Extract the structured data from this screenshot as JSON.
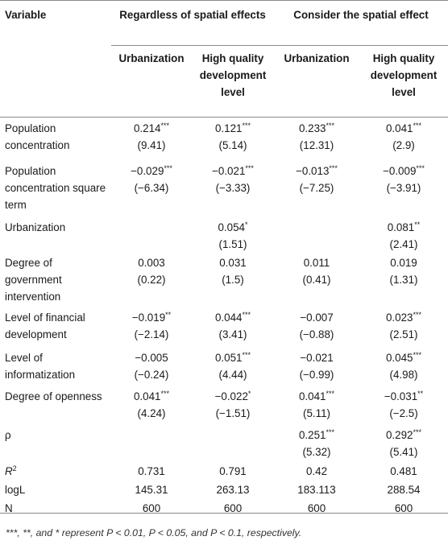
{
  "table": {
    "header": {
      "variable": "Variable",
      "group1": "Regardless of spatial effects",
      "group2": "Consider the spatial effect"
    },
    "subheaders": [
      "Urbanization",
      "High quality development level",
      "Urbanization",
      "High quality development level"
    ],
    "rows": [
      {
        "label": "Population concentration",
        "coef": [
          "0.214***",
          "0.121***",
          "0.233***",
          "0.041***"
        ],
        "se": [
          "(9.41)",
          "(5.14)",
          "(12.31)",
          "(2.9)"
        ]
      },
      {
        "label": "Population concentration square term",
        "coef": [
          "−0.029***",
          "−0.021***",
          "−0.013***",
          "−0.009***"
        ],
        "se": [
          "(−6.34)",
          "(−3.33)",
          "(−7.25)",
          "(−3.91)"
        ]
      },
      {
        "label": "Urbanization",
        "coef": [
          "",
          "0.054*",
          "",
          "0.081**"
        ],
        "se": [
          "",
          "(1.51)",
          "",
          "(2.41)"
        ]
      },
      {
        "label": "Degree of government intervention",
        "coef": [
          "0.003",
          "0.031",
          "0.011",
          "0.019"
        ],
        "se": [
          "(0.22)",
          "(1.5)",
          "(0.41)",
          "(1.31)"
        ]
      },
      {
        "label": "Level of financial development",
        "coef": [
          "−0.019**",
          "0.044***",
          "−0.007",
          "0.023***"
        ],
        "se": [
          "(−2.14)",
          "(3.41)",
          "(−0.88)",
          "(2.51)"
        ]
      },
      {
        "label": "Level of informatization",
        "coef": [
          "−0.005",
          "0.051***",
          "−0.021",
          "0.045***"
        ],
        "se": [
          "(−0.24)",
          "(4.44)",
          "(−0.99)",
          "(4.98)"
        ]
      },
      {
        "label": "Degree of openness",
        "coef": [
          "0.041***",
          "−0.022*",
          "0.041***",
          "−0.031**"
        ],
        "se": [
          "(4.24)",
          "(−1.51)",
          "(5.11)",
          "(−2.5)"
        ]
      },
      {
        "label": "ρ",
        "coef": [
          "",
          "",
          "0.251***",
          "0.292***"
        ],
        "se": [
          "",
          "",
          "(5.32)",
          "(5.41)"
        ]
      },
      {
        "label": "R2",
        "coef": [
          "0.731",
          "0.791",
          "0.42",
          "0.481"
        ],
        "se": [
          "",
          "",
          "",
          ""
        ]
      },
      {
        "label": "logL",
        "coef": [
          "145.31",
          "263.13",
          "183.113",
          "288.54"
        ],
        "se": [
          "",
          "",
          "",
          ""
        ]
      },
      {
        "label": "N",
        "coef": [
          "600",
          "600",
          "600",
          "600"
        ],
        "se": [
          "",
          "",
          "",
          ""
        ]
      }
    ],
    "footnote": "***, **, and * represent P < 0.01, P < 0.05, and P < 0.1, respectively."
  }
}
